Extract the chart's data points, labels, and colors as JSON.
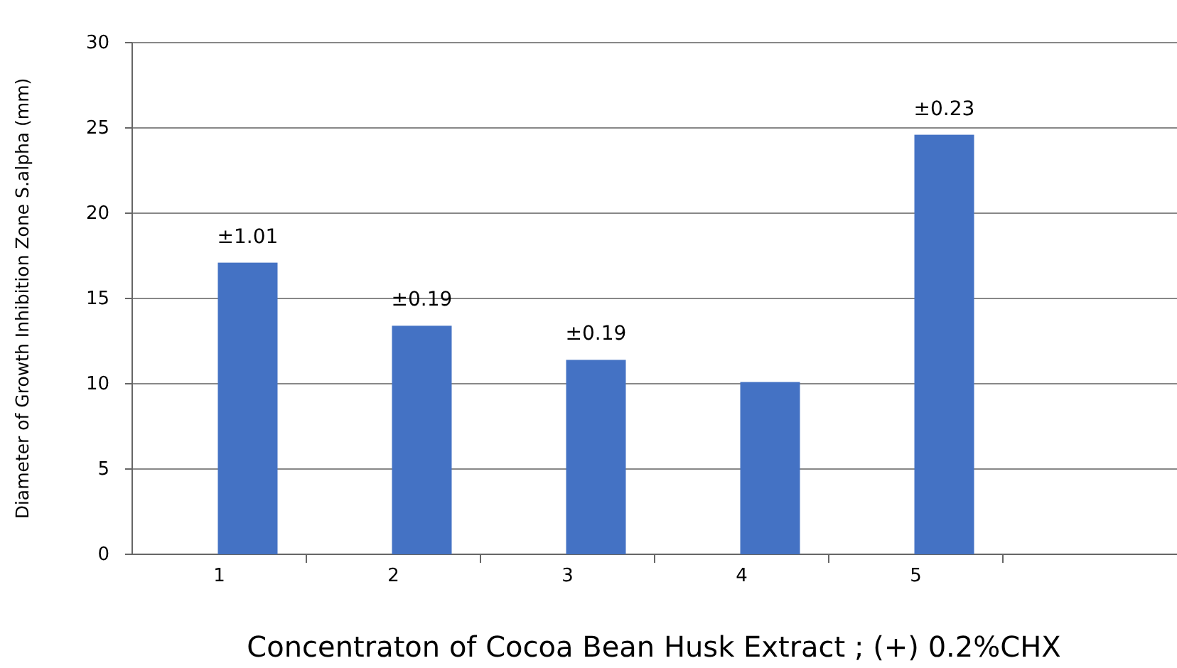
{
  "chart_data": {
    "type": "bar",
    "xlabel": "Concentraton of Cocoa Bean Husk Extract ; (+) 0.2%CHX",
    "ylabel": "Diameter of Growth Inhibition Zone S.alpha (mm)",
    "categories": [
      "1",
      "2",
      "3",
      "4",
      "5",
      null
    ],
    "values": [
      17.1,
      13.4,
      11.4,
      10.1,
      24.6,
      null
    ],
    "annotations": [
      {
        "text": "±1.01",
        "x": "1",
        "y": 17.1
      },
      {
        "text": "±0.19",
        "x": "2",
        "y": 13.4
      },
      {
        "text": "±0.19",
        "x": "3",
        "y": 11.4
      },
      {
        "text": "±0.23",
        "x": "5",
        "y": 24.6
      }
    ],
    "color": "#4472c4",
    "ylim": [
      0,
      30
    ],
    "yticks": [
      0,
      5,
      10,
      15,
      20,
      25,
      30
    ],
    "grid": "y"
  }
}
